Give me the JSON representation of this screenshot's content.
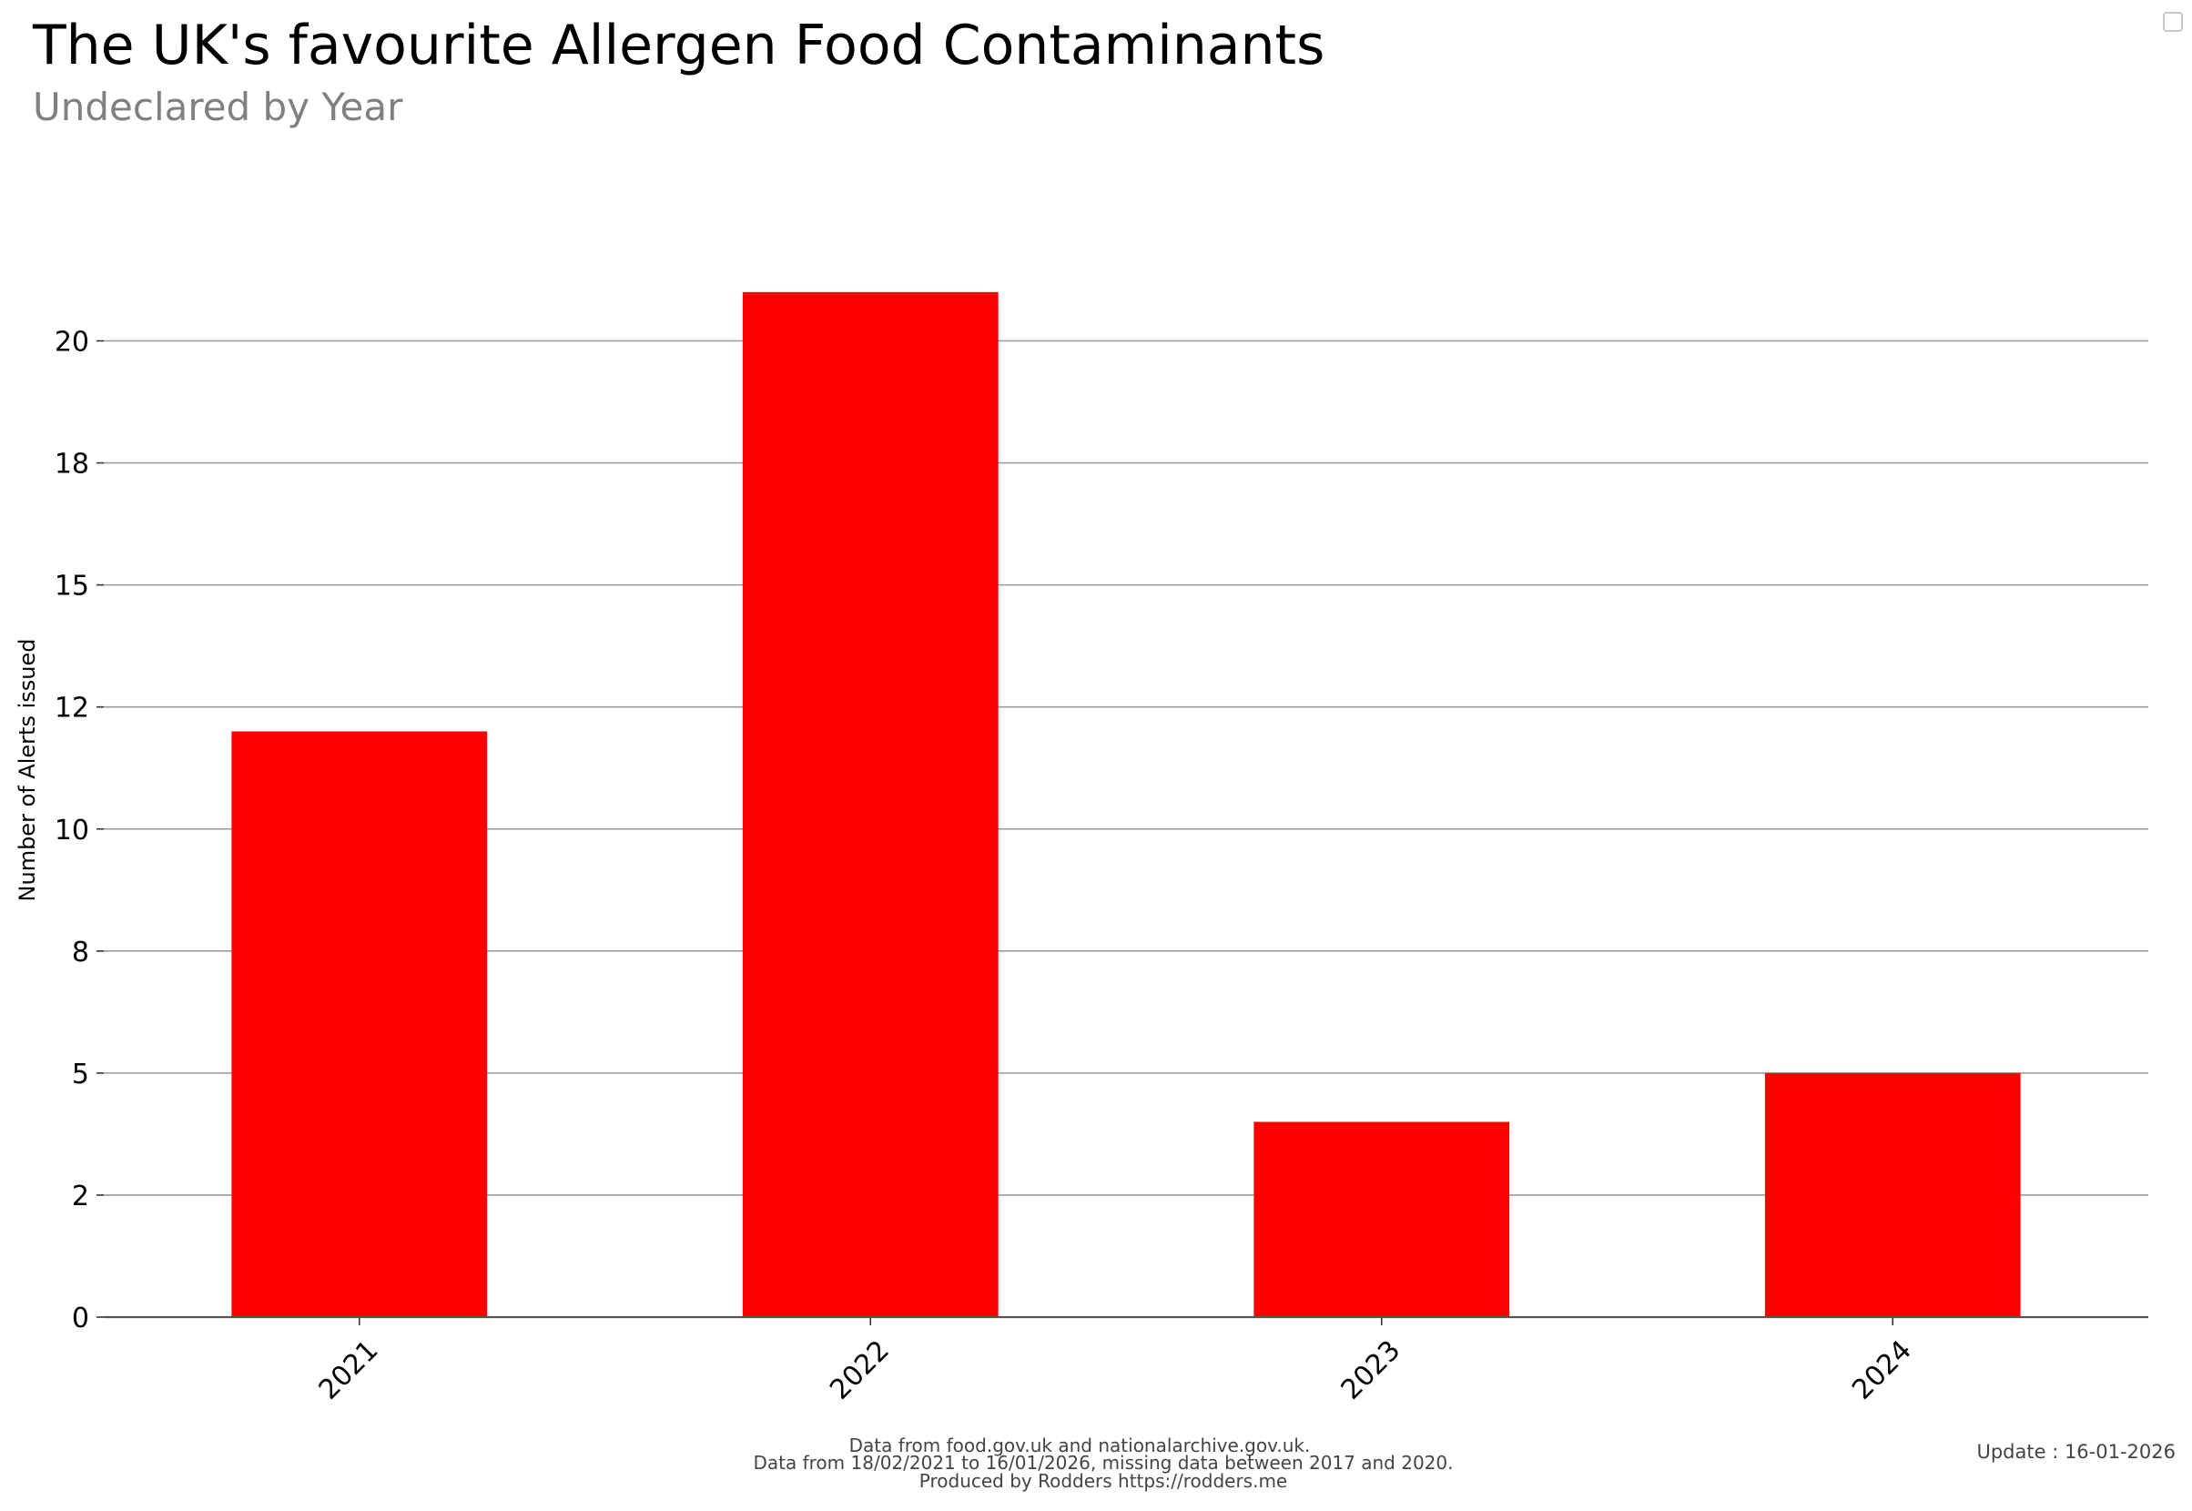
{
  "colors": {
    "bar": "#ff0000",
    "grid": "#999999",
    "axis": "#555555",
    "subtitle": "#808080"
  },
  "footer": {
    "lines": [
      "Data from food.gov.uk and nationalarchive.gov.uk.",
      "Data from 18/02/2021 to 16/01/2026, missing data between 2017 and 2020.",
      "Produced by Rodders https://rodders.me"
    ],
    "update": "Update : 16-01-2026"
  },
  "chart_data": {
    "type": "bar",
    "title": "The UK's favourite Allergen Food Contaminants",
    "subtitle": "Undeclared by Year",
    "xlabel": "",
    "ylabel": "Number of Alerts issued",
    "categories": [
      "2021",
      "2022",
      "2023",
      "2024"
    ],
    "values": [
      12,
      21,
      4,
      5
    ],
    "ylim": [
      0,
      24
    ],
    "ytick_values": [
      0,
      2.5,
      5,
      7.5,
      10,
      12.5,
      15,
      17.5,
      20
    ],
    "ytick_labels": [
      "0",
      "2",
      "5",
      "8",
      "10",
      "12",
      "15",
      "18",
      "20"
    ],
    "grid": "horizontal",
    "legend": "none"
  }
}
